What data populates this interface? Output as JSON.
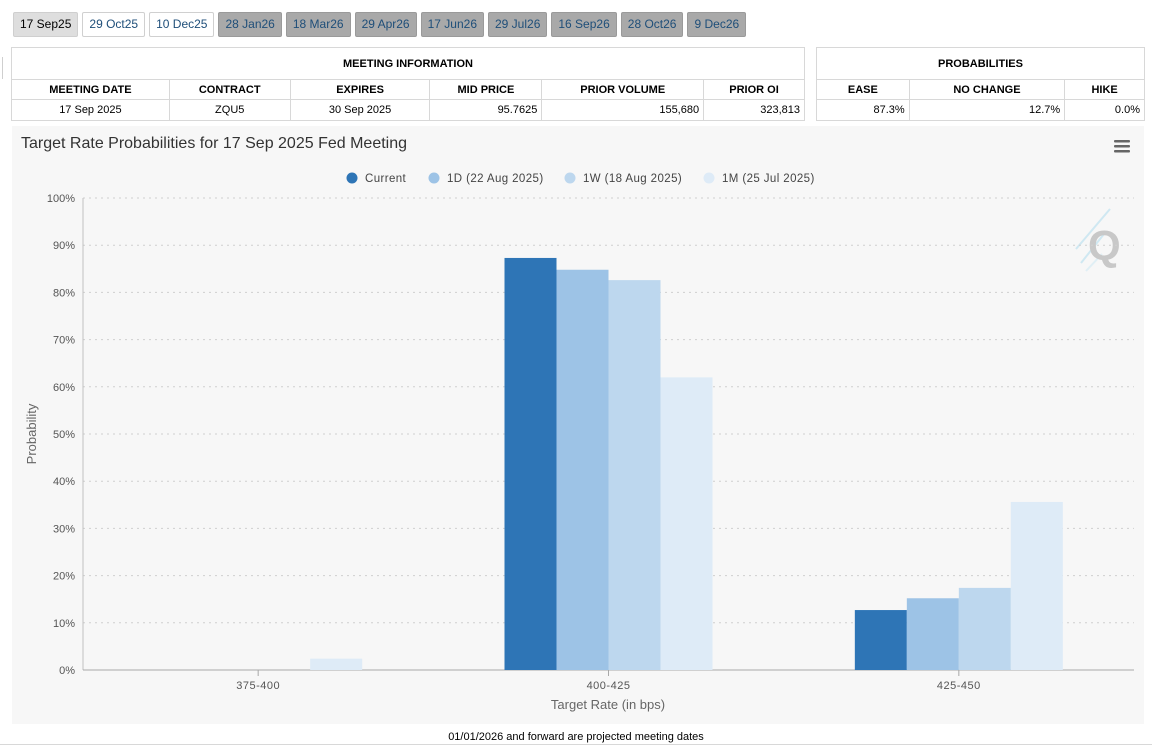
{
  "tabs": [
    {
      "label": "17 Sep25",
      "style": "selected"
    },
    {
      "label": "29 Oct25",
      "style": "white"
    },
    {
      "label": "10 Dec25",
      "style": "white"
    },
    {
      "label": "28 Jan26",
      "style": "gray"
    },
    {
      "label": "18 Mar26",
      "style": "gray"
    },
    {
      "label": "29 Apr26",
      "style": "gray"
    },
    {
      "label": "17 Jun26",
      "style": "gray"
    },
    {
      "label": "29 Jul26",
      "style": "gray"
    },
    {
      "label": "16 Sep26",
      "style": "gray"
    },
    {
      "label": "28 Oct26",
      "style": "gray"
    },
    {
      "label": "9 Dec26",
      "style": "gray"
    }
  ],
  "meeting_info": {
    "title": "MEETING INFORMATION",
    "headers": [
      "MEETING DATE",
      "CONTRACT",
      "EXPIRES",
      "MID PRICE",
      "PRIOR VOLUME",
      "PRIOR OI"
    ],
    "row": [
      "17 Sep 2025",
      "ZQU5",
      "30 Sep 2025",
      "95.7625",
      "155,680",
      "323,813"
    ]
  },
  "probabilities": {
    "title": "PROBABILITIES",
    "headers": [
      "EASE",
      "NO CHANGE",
      "HIKE"
    ],
    "row": [
      "87.3%",
      "12.7%",
      "0.0%"
    ]
  },
  "menu_icon": "hamburger-menu-icon",
  "watermark_icon": "q-logo-icon",
  "chart_data": {
    "type": "bar",
    "title": "Target Rate Probabilities for 17 Sep 2025 Fed Meeting",
    "xlabel": "Target Rate (in bps)",
    "ylabel": "Probability",
    "categories": [
      "375-400",
      "400-425",
      "425-450"
    ],
    "yticks": [
      "0%",
      "10%",
      "20%",
      "30%",
      "40%",
      "50%",
      "60%",
      "70%",
      "80%",
      "90%",
      "100%"
    ],
    "ylim": [
      0,
      100
    ],
    "grid": true,
    "legend_position": "top",
    "series": [
      {
        "name": "Current",
        "color": "#2e75b6",
        "values": [
          0,
          87.3,
          12.7
        ]
      },
      {
        "name": "1D (22 Aug 2025)",
        "color": "#9dc3e6",
        "values": [
          0,
          84.8,
          15.2
        ]
      },
      {
        "name": "1W (18 Aug 2025)",
        "color": "#bdd7ee",
        "values": [
          0,
          82.6,
          17.4
        ]
      },
      {
        "name": "1M (25 Jul 2025)",
        "color": "#deebf7",
        "values": [
          2.4,
          62.0,
          35.6
        ]
      }
    ]
  },
  "footer": {
    "note": "01/01/2026 and forward are projected meeting dates"
  }
}
